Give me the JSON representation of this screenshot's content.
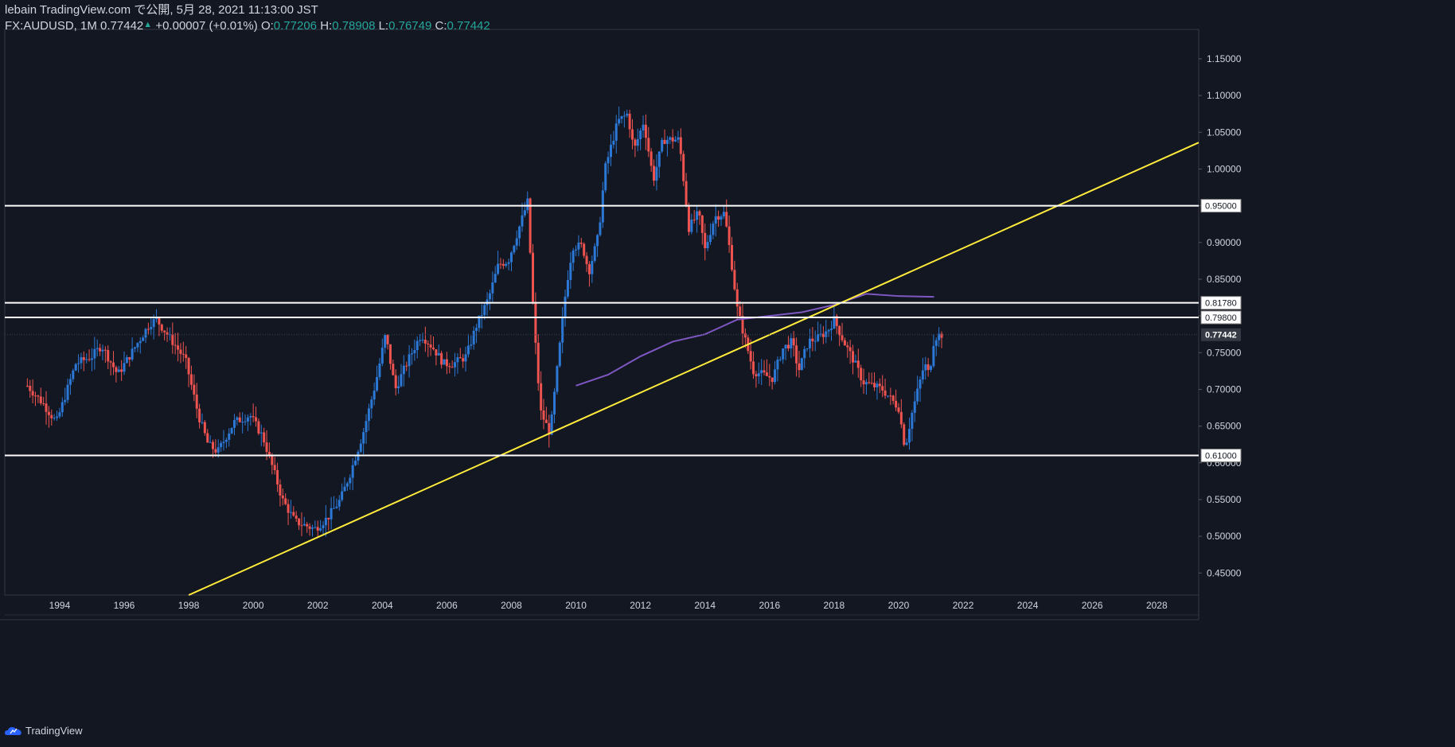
{
  "header": {
    "publisher": "lebain TradingView.com で公開, 5月 28, 2021 11:13:00 JST",
    "symbol": "FX:AUDUSD, 1M",
    "last": "0.77442",
    "change": "+0.00007 (+0.01%)",
    "o_label": "O:",
    "o_value": "0.77206",
    "h_label": "H:",
    "h_value": "0.78908",
    "l_label": "L:",
    "l_value": "0.76749",
    "c_label": "C:",
    "c_value": "0.77442"
  },
  "footer": {
    "brand": "TradingView",
    "icon": "tradingview-logo-icon"
  },
  "colors": {
    "background": "#131722",
    "up": "#2b78d6",
    "down": "#ef5350",
    "trendline": "#ffeb3b",
    "ma": "#7e57c2",
    "hline": "#ffffff",
    "text": "#d1d4dc",
    "teal": "#26a69a"
  },
  "chart_data": {
    "type": "candlestick",
    "symbol": "FX:AUDUSD",
    "interval": "1M",
    "x_ticks": [
      "1994",
      "1996",
      "1998",
      "2000",
      "2002",
      "2004",
      "2006",
      "2008",
      "2010",
      "2012",
      "2014",
      "2016",
      "2018",
      "2020",
      "2022",
      "2024",
      "2026",
      "2028"
    ],
    "y_ticks": [
      "0.45000",
      "0.50000",
      "0.55000",
      "0.60000",
      "0.65000",
      "0.70000",
      "0.75000",
      "0.80000",
      "0.85000",
      "0.90000",
      "0.95000",
      "1.00000",
      "1.05000",
      "1.10000",
      "1.15000"
    ],
    "xlim": [
      1992.3,
      2029.3
    ],
    "ylim": [
      0.42,
      1.19
    ],
    "horizontal_levels": [
      "0.95000",
      "0.81780",
      "0.79800",
      "0.61000"
    ],
    "last_price_label": "0.77442",
    "trendline": {
      "from": [
        1998.0,
        0.42
      ],
      "to": [
        2029.3,
        1.036
      ]
    },
    "moving_average": [
      [
        2010.0,
        0.705
      ],
      [
        2011.0,
        0.72
      ],
      [
        2012.0,
        0.745
      ],
      [
        2013.0,
        0.765
      ],
      [
        2014.0,
        0.775
      ],
      [
        2015.0,
        0.795
      ],
      [
        2016.0,
        0.8
      ],
      [
        2017.0,
        0.805
      ],
      [
        2018.0,
        0.815
      ],
      [
        2019.0,
        0.83
      ],
      [
        2020.0,
        0.827
      ],
      [
        2021.1,
        0.826
      ]
    ],
    "candles_close_anchor": [
      [
        1993.0,
        0.705
      ],
      [
        1993.5,
        0.68
      ],
      [
        1993.9,
        0.655
      ],
      [
        1994.5,
        0.735
      ],
      [
        1995.0,
        0.745
      ],
      [
        1995.3,
        0.76
      ],
      [
        1995.8,
        0.72
      ],
      [
        1996.3,
        0.755
      ],
      [
        1996.8,
        0.79
      ],
      [
        1997.0,
        0.795
      ],
      [
        1997.5,
        0.765
      ],
      [
        1997.9,
        0.74
      ],
      [
        1998.3,
        0.665
      ],
      [
        1998.6,
        0.625
      ],
      [
        1998.9,
        0.615
      ],
      [
        1999.4,
        0.655
      ],
      [
        1999.9,
        0.665
      ],
      [
        2000.3,
        0.635
      ],
      [
        2000.7,
        0.58
      ],
      [
        2000.9,
        0.55
      ],
      [
        2001.3,
        0.52
      ],
      [
        2001.6,
        0.515
      ],
      [
        2001.9,
        0.51
      ],
      [
        2002.3,
        0.525
      ],
      [
        2002.7,
        0.55
      ],
      [
        2003.0,
        0.585
      ],
      [
        2003.4,
        0.64
      ],
      [
        2003.8,
        0.71
      ],
      [
        2004.1,
        0.775
      ],
      [
        2004.4,
        0.7
      ],
      [
        2004.8,
        0.74
      ],
      [
        2005.2,
        0.775
      ],
      [
        2005.6,
        0.755
      ],
      [
        2005.9,
        0.735
      ],
      [
        2006.2,
        0.735
      ],
      [
        2006.6,
        0.745
      ],
      [
        2006.9,
        0.785
      ],
      [
        2007.3,
        0.825
      ],
      [
        2007.6,
        0.87
      ],
      [
        2007.9,
        0.875
      ],
      [
        2008.2,
        0.915
      ],
      [
        2008.5,
        0.955
      ],
      [
        2008.7,
        0.79
      ],
      [
        2008.9,
        0.67
      ],
      [
        2009.2,
        0.64
      ],
      [
        2009.4,
        0.72
      ],
      [
        2009.7,
        0.84
      ],
      [
        2009.9,
        0.895
      ],
      [
        2010.2,
        0.895
      ],
      [
        2010.4,
        0.86
      ],
      [
        2010.7,
        0.91
      ],
      [
        2010.9,
        1.0
      ],
      [
        2011.3,
        1.065
      ],
      [
        2011.6,
        1.075
      ],
      [
        2011.8,
        1.025
      ],
      [
        2012.1,
        1.065
      ],
      [
        2012.4,
        0.985
      ],
      [
        2012.7,
        1.04
      ],
      [
        2012.9,
        1.04
      ],
      [
        2013.2,
        1.04
      ],
      [
        2013.5,
        0.92
      ],
      [
        2013.8,
        0.94
      ],
      [
        2014.0,
        0.89
      ],
      [
        2014.3,
        0.935
      ],
      [
        2014.6,
        0.94
      ],
      [
        2014.8,
        0.88
      ],
      [
        2015.0,
        0.81
      ],
      [
        2015.2,
        0.775
      ],
      [
        2015.5,
        0.725
      ],
      [
        2015.8,
        0.72
      ],
      [
        2016.1,
        0.715
      ],
      [
        2016.4,
        0.755
      ],
      [
        2016.7,
        0.765
      ],
      [
        2016.9,
        0.725
      ],
      [
        2017.2,
        0.765
      ],
      [
        2017.5,
        0.77
      ],
      [
        2017.8,
        0.78
      ],
      [
        2018.0,
        0.795
      ],
      [
        2018.3,
        0.765
      ],
      [
        2018.6,
        0.74
      ],
      [
        2018.9,
        0.71
      ],
      [
        2019.2,
        0.705
      ],
      [
        2019.5,
        0.7
      ],
      [
        2019.8,
        0.685
      ],
      [
        2020.0,
        0.675
      ],
      [
        2020.2,
        0.62
      ],
      [
        2020.4,
        0.665
      ],
      [
        2020.6,
        0.7
      ],
      [
        2020.8,
        0.735
      ],
      [
        2020.95,
        0.72
      ],
      [
        2021.1,
        0.77
      ],
      [
        2021.3,
        0.775
      ],
      [
        2021.4,
        0.774
      ]
    ]
  }
}
